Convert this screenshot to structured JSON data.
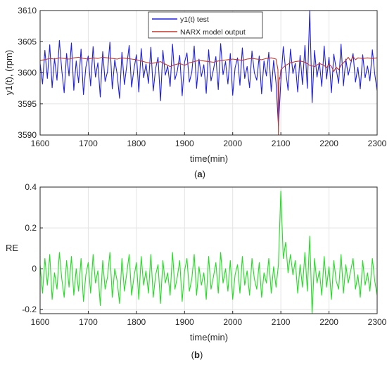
{
  "chart_data": [
    {
      "type": "line",
      "panel_label": "a",
      "xlabel": "time(min)",
      "ylabel": "y1(t), (rpm)",
      "xlim": [
        1600,
        2300
      ],
      "ylim": [
        3590,
        3610
      ],
      "xticks": [
        "1600",
        "1700",
        "1800",
        "1900",
        "2000",
        "2100",
        "2200",
        "2300"
      ],
      "yticks": [
        "3590",
        "3595",
        "3600",
        "3605",
        "3610"
      ],
      "grid": true,
      "legend": "top-center",
      "series": [
        {
          "name": "y1(t) test",
          "color": "#2020e0",
          "x": [
            1600,
            1605,
            1610,
            1615,
            1620,
            1625,
            1630,
            1635,
            1640,
            1645,
            1650,
            1655,
            1660,
            1665,
            1670,
            1675,
            1680,
            1685,
            1690,
            1695,
            1700,
            1705,
            1710,
            1715,
            1720,
            1725,
            1730,
            1735,
            1740,
            1745,
            1750,
            1755,
            1760,
            1765,
            1770,
            1775,
            1780,
            1785,
            1790,
            1795,
            1800,
            1805,
            1810,
            1815,
            1820,
            1825,
            1830,
            1835,
            1840,
            1845,
            1850,
            1855,
            1860,
            1865,
            1870,
            1875,
            1880,
            1885,
            1890,
            1895,
            1900,
            1905,
            1910,
            1915,
            1920,
            1925,
            1930,
            1935,
            1940,
            1945,
            1950,
            1955,
            1960,
            1965,
            1970,
            1975,
            1980,
            1985,
            1990,
            1995,
            2000,
            2005,
            2010,
            2015,
            2020,
            2025,
            2030,
            2035,
            2040,
            2045,
            2050,
            2055,
            2060,
            2065,
            2070,
            2075,
            2080,
            2085,
            2090,
            2095,
            2100,
            2105,
            2110,
            2115,
            2120,
            2125,
            2130,
            2135,
            2140,
            2145,
            2150,
            2155,
            2160,
            2165,
            2170,
            2175,
            2180,
            2185,
            2190,
            2195,
            2200,
            2205,
            2210,
            2215,
            2220,
            2225,
            2230,
            2235,
            2240,
            2245,
            2250,
            2255,
            2260,
            2265,
            2270,
            2275,
            2280,
            2285,
            2290,
            2295,
            2300
          ],
          "y": [
            3601.5,
            3598.2,
            3603.6,
            3599.1,
            3604.5,
            3597.6,
            3602.3,
            3598.8,
            3605.2,
            3600.4,
            3596.8,
            3603.1,
            3599.5,
            3604.8,
            3597.2,
            3601.9,
            3598.4,
            3603.8,
            3596.5,
            3600.9,
            3602.7,
            3597.9,
            3604.2,
            3599.3,
            3601.6,
            3596.1,
            3603.4,
            3598.6,
            3600.2,
            3604.9,
            3597.4,
            3602.1,
            3599.8,
            3595.9,
            3603.3,
            3598.1,
            3601.2,
            3604.4,
            3597.7,
            3600.6,
            3602.9,
            3596.9,
            3603.9,
            3599.2,
            3601.4,
            3598.3,
            3604.1,
            3597.1,
            3600.7,
            3602.5,
            3595.5,
            3603.6,
            3599.6,
            3601.1,
            3597.8,
            3604.6,
            3598.9,
            3600.3,
            3602.8,
            3596.3,
            3601.7,
            3603.2,
            3598.5,
            3600.1,
            3604.3,
            3597.5,
            3602.2,
            3599.4,
            3601.3,
            3596.7,
            3603.7,
            3598.7,
            3600.5,
            3602.6,
            3597.3,
            3604.7,
            3599.7,
            3601.8,
            3598.2,
            3603.1,
            3596.4,
            3600.8,
            3602.4,
            3598,
            3604,
            3599.1,
            3601,
            3597.6,
            3603.5,
            3600,
            3598.8,
            3602.7,
            3596.6,
            3601.9,
            3599.5,
            3603.3,
            3597,
            3602,
            3598.4,
            3591.5,
            3598.6,
            3604.2,
            3600.4,
            3597.2,
            3603.8,
            3599.9,
            3601.5,
            3596.9,
            3602.8,
            3598.1,
            3604.4,
            3597.5,
            3610,
            3595.2,
            3603.6,
            3599.3,
            3601.7,
            3597.8,
            3604.3,
            3599,
            3602.5,
            3596.8,
            3603,
            3600.6,
            3598.3,
            3604.6,
            3597.9,
            3602.2,
            3599.6,
            3601.4,
            3603.1,
            3598.5,
            3600.9,
            3597.4,
            3602.9,
            3599.2,
            3601.1,
            3598.7,
            3603.7,
            3599.8,
            3597.1
          ]
        },
        {
          "name": "NARX model output",
          "color": "#c0392b",
          "x": [
            1600,
            1610,
            1620,
            1630,
            1640,
            1650,
            1660,
            1670,
            1680,
            1690,
            1700,
            1710,
            1720,
            1730,
            1740,
            1750,
            1760,
            1770,
            1780,
            1790,
            1800,
            1810,
            1820,
            1830,
            1840,
            1850,
            1860,
            1870,
            1880,
            1890,
            1900,
            1910,
            1920,
            1930,
            1940,
            1950,
            1960,
            1970,
            1980,
            1990,
            2000,
            2010,
            2020,
            2030,
            2040,
            2050,
            2060,
            2070,
            2080,
            2090,
            2094,
            2095,
            2096,
            2097,
            2098,
            2100,
            2110,
            2120,
            2130,
            2140,
            2150,
            2160,
            2170,
            2180,
            2190,
            2195,
            2200,
            2205,
            2210,
            2215,
            2220,
            2225,
            2230,
            2235,
            2240,
            2245,
            2250,
            2255,
            2260,
            2270,
            2280,
            2290,
            2300
          ],
          "y": [
            3602,
            3602.1,
            3602.3,
            3602.2,
            3602.4,
            3602.3,
            3602.2,
            3602.4,
            3602.5,
            3602.3,
            3602.2,
            3602.4,
            3602.3,
            3602.5,
            3602.4,
            3602.3,
            3602.2,
            3602.4,
            3602.3,
            3602.2,
            3602.1,
            3601.9,
            3601.7,
            3601.5,
            3601.6,
            3601.8,
            3601.4,
            3601,
            3601.3,
            3601.5,
            3601.2,
            3601.6,
            3601.8,
            3602,
            3601.9,
            3601.8,
            3601.7,
            3601.9,
            3602,
            3602.1,
            3602.2,
            3602.1,
            3602,
            3602.2,
            3602.3,
            3602.2,
            3602.1,
            3602.3,
            3602.4,
            3602.2,
            3600.5,
            3590,
            3598.5,
            3599.2,
            3599,
            3600.5,
            3601.2,
            3601.6,
            3601.8,
            3601.9,
            3601.7,
            3601.2,
            3601,
            3601.5,
            3601.2,
            3600.8,
            3601.4,
            3601,
            3600.2,
            3600.9,
            3600.5,
            3601.2,
            3601.6,
            3602,
            3602.5,
            3601.9,
            3602.6,
            3602.1,
            3602.4,
            3602.3,
            3602.4,
            3602.3,
            3602.4
          ]
        }
      ]
    },
    {
      "type": "line",
      "panel_label": "b",
      "xlabel": "time(min)",
      "ylabel": "RE",
      "xlim": [
        1600,
        2300
      ],
      "ylim": [
        -0.22,
        0.4
      ],
      "xticks": [
        "1600",
        "1700",
        "1800",
        "1900",
        "2000",
        "2100",
        "2200",
        "2300"
      ],
      "yticks": [
        "-0.2",
        "0",
        "0.2",
        "0.4"
      ],
      "grid": true,
      "series": [
        {
          "color": "#22dd22",
          "x": [
            1600,
            1605,
            1610,
            1615,
            1620,
            1625,
            1630,
            1635,
            1640,
            1645,
            1650,
            1655,
            1660,
            1665,
            1670,
            1675,
            1680,
            1685,
            1690,
            1695,
            1700,
            1705,
            1710,
            1715,
            1720,
            1725,
            1730,
            1735,
            1740,
            1745,
            1750,
            1755,
            1760,
            1765,
            1770,
            1775,
            1780,
            1785,
            1790,
            1795,
            1800,
            1805,
            1810,
            1815,
            1820,
            1825,
            1830,
            1835,
            1840,
            1845,
            1850,
            1855,
            1860,
            1865,
            1870,
            1875,
            1880,
            1885,
            1890,
            1895,
            1900,
            1905,
            1910,
            1915,
            1920,
            1925,
            1930,
            1935,
            1940,
            1945,
            1950,
            1955,
            1960,
            1965,
            1970,
            1975,
            1980,
            1985,
            1990,
            1995,
            2000,
            2005,
            2010,
            2015,
            2020,
            2025,
            2030,
            2035,
            2040,
            2045,
            2050,
            2055,
            2060,
            2065,
            2070,
            2075,
            2080,
            2085,
            2090,
            2095,
            2100,
            2105,
            2110,
            2115,
            2120,
            2125,
            2130,
            2135,
            2140,
            2145,
            2150,
            2155,
            2160,
            2165,
            2170,
            2175,
            2180,
            2185,
            2190,
            2195,
            2200,
            2205,
            2210,
            2215,
            2220,
            2225,
            2230,
            2235,
            2240,
            2245,
            2250,
            2255,
            2260,
            2265,
            2270,
            2275,
            2280,
            2285,
            2290,
            2295,
            2300
          ],
          "y": [
            0.02,
            -0.12,
            0.05,
            -0.08,
            0.07,
            -0.15,
            -0.02,
            -0.1,
            0.08,
            -0.05,
            -0.14,
            0.04,
            -0.09,
            0.06,
            -0.13,
            0,
            -0.11,
            0.05,
            -0.16,
            -0.03,
            0.03,
            -0.12,
            0.07,
            -0.07,
            -0.01,
            -0.18,
            0.04,
            -0.1,
            -0.04,
            0.08,
            -0.14,
            0,
            -0.06,
            -0.17,
            0.05,
            -0.11,
            -0.02,
            0.07,
            -0.13,
            -0.04,
            0.03,
            -0.15,
            0.06,
            -0.08,
            -0.01,
            -0.12,
            0.07,
            -0.14,
            -0.03,
            0.02,
            -0.17,
            0.04,
            -0.07,
            -0.02,
            -0.13,
            0.08,
            -0.1,
            -0.04,
            0.04,
            -0.16,
            -0.01,
            0.05,
            -0.11,
            -0.05,
            0.07,
            -0.13,
            0.01,
            -0.08,
            -0.02,
            -0.15,
            0.06,
            -0.1,
            -0.04,
            0.03,
            -0.12,
            0.08,
            -0.07,
            0,
            -0.11,
            0.04,
            -0.15,
            -0.03,
            0.02,
            -0.12,
            0.06,
            -0.08,
            -0.01,
            -0.13,
            0.05,
            -0.05,
            -0.1,
            0.03,
            -0.14,
            -0.02,
            -0.07,
            0.05,
            -0.12,
            0.01,
            -0.09,
            0.02,
            0.38,
            0.05,
            0.13,
            -0.02,
            0.07,
            -0.03,
            0.04,
            -0.12,
            0.02,
            -0.09,
            0.08,
            -0.11,
            0.16,
            -0.22,
            0.05,
            -0.07,
            -0.01,
            -0.13,
            0.06,
            -0.09,
            0.01,
            -0.15,
            0.04,
            -0.06,
            -0.1,
            0.07,
            -0.12,
            0.02,
            -0.07,
            -0.01,
            0.05,
            -0.1,
            -0.03,
            -0.14,
            0.04,
            -0.08,
            -0.02,
            -0.11,
            0.05,
            -0.06,
            -0.13
          ]
        }
      ]
    }
  ]
}
